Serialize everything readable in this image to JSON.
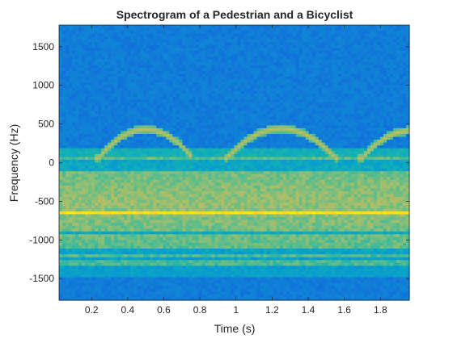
{
  "chart_data": {
    "type": "heatmap",
    "title": "Spectrogram of a Pedestrian and a Bicyclist",
    "xlabel": "Time (s)",
    "ylabel": "Frequency (Hz)",
    "xlim": [
      0.02,
      1.96
    ],
    "ylim": [
      -1780,
      1780
    ],
    "xticks": [
      0.2,
      0.4,
      0.6,
      0.8,
      1,
      1.2,
      1.4,
      1.6,
      1.8
    ],
    "xtick_labels": [
      "0.2",
      "0.4",
      "0.6",
      "0.8",
      "1",
      "1.2",
      "1.4",
      "1.6",
      "1.8"
    ],
    "yticks": [
      1500,
      1000,
      500,
      0,
      -500,
      -1000,
      -1500
    ],
    "ytick_labels": [
      "1500",
      "1000",
      "500",
      "0",
      "-500",
      "-1000",
      "-1500"
    ],
    "colormap": "parula",
    "grid": false,
    "features": {
      "background_level": 0.27,
      "band_range_hz": [
        -1380,
        80
      ],
      "band_level": 0.58,
      "peak_line_hz": -660,
      "peak_line_level": 0.96,
      "horizontal_stripes_hz": [
        -1340,
        -1250,
        -1180,
        -1120,
        -900,
        -80,
        -40,
        20
      ],
      "bicyclist_arches": [
        {
          "t_start": 0.24,
          "t_end": 0.74,
          "peak_t": 0.5,
          "peak_hz": 370
        },
        {
          "t_start": 0.95,
          "t_end": 1.55,
          "peak_t": 1.25,
          "peak_hz": 380
        },
        {
          "t_start": 1.7,
          "t_end": 1.96,
          "peak_t": 1.96,
          "peak_hz": 350
        }
      ]
    }
  },
  "colors": {
    "background": "#ffffff",
    "axis": "#262626",
    "low": "#1d84e2",
    "mid": "#38c3a3",
    "high": "#f9fb0e"
  }
}
